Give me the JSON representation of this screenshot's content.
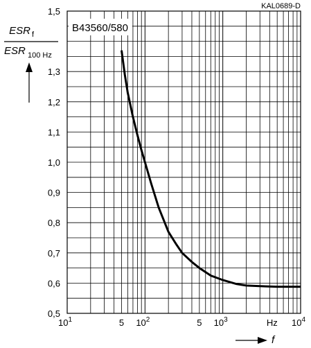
{
  "chart_data": {
    "type": "line",
    "figure_code": "KAL0689-D",
    "series_label": "B43560/580",
    "ylabel": {
      "numerator": "ESR",
      "numerator_sub": "f",
      "denominator": "ESR",
      "denominator_sub": "100 Hz"
    },
    "xlabel": "f",
    "x_scale": "log",
    "xlim": [
      10,
      10000
    ],
    "ylim": [
      0.5,
      1.5
    ],
    "grid": true,
    "x_ticks": [
      {
        "label": "10",
        "exp": "1",
        "value": 10
      },
      {
        "label": "5",
        "exp": "",
        "value": 50
      },
      {
        "label": "10",
        "exp": "2",
        "value": 100
      },
      {
        "label": "5",
        "exp": "",
        "value": 500
      },
      {
        "label": "10",
        "exp": "3",
        "value": 1000
      },
      {
        "label": "Hz",
        "exp": "",
        "value": 4300
      },
      {
        "label": "10",
        "exp": "4",
        "value": 10000
      }
    ],
    "y_ticks": [
      {
        "label": "0,5",
        "value": 0.5
      },
      {
        "label": "0,6",
        "value": 0.6
      },
      {
        "label": "0,7",
        "value": 0.7
      },
      {
        "label": "0,8",
        "value": 0.8
      },
      {
        "label": "0,9",
        "value": 0.9
      },
      {
        "label": "1,0",
        "value": 1.0
      },
      {
        "label": "1,1",
        "value": 1.1
      },
      {
        "label": "1,2",
        "value": 1.2
      },
      {
        "label": "1,3",
        "value": 1.3
      },
      {
        "label": "1,5",
        "value": 1.5
      }
    ],
    "series": [
      {
        "x": [
          50,
          55,
          60,
          70,
          80,
          90,
          100,
          120,
          150,
          200,
          250,
          300,
          400,
          500,
          700,
          1000,
          1500,
          2000,
          3000,
          5000,
          7000,
          10000
        ],
        "y": [
          1.37,
          1.29,
          1.23,
          1.15,
          1.09,
          1.04,
          1.0,
          0.93,
          0.85,
          0.77,
          0.73,
          0.7,
          0.67,
          0.65,
          0.625,
          0.61,
          0.597,
          0.592,
          0.59,
          0.588,
          0.588,
          0.588
        ]
      }
    ]
  }
}
